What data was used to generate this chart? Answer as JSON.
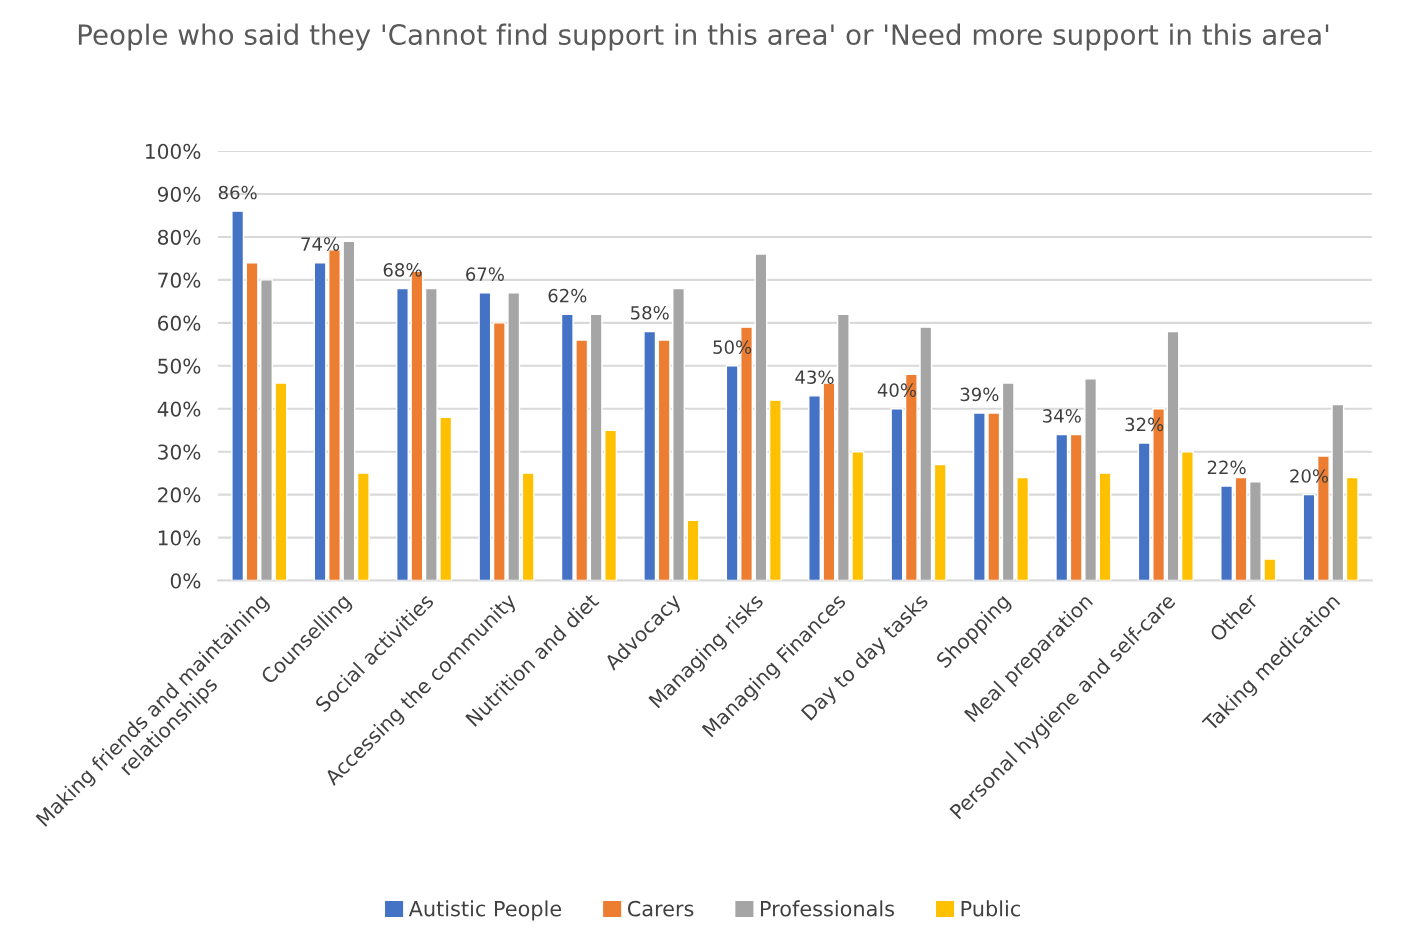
{
  "chart_data": {
    "type": "bar",
    "title": "People who said they 'Cannot find support in this area' or 'Need more support in this area'",
    "categories": [
      "Making friends and maintaining\nrelationships",
      "Counselling",
      "Social activities",
      "Accessing the community",
      "Nutrition and diet",
      "Advocacy",
      "Managing risks",
      "Managing Finances",
      "Day to day tasks",
      "Shopping",
      "Meal preparation",
      "Personal hygiene and self-care",
      "Other",
      "Taking medication"
    ],
    "series": [
      {
        "name": "Autistic People",
        "color": "#4472c4",
        "values": [
          86,
          74,
          68,
          67,
          62,
          58,
          50,
          43,
          40,
          39,
          34,
          32,
          22,
          20
        ],
        "value_labels": [
          "86%",
          "74%",
          "68%",
          "67%",
          "62%",
          "58%",
          "50%",
          "43%",
          "40%",
          "39%",
          "34%",
          "32%",
          "22%",
          "20%"
        ]
      },
      {
        "name": "Carers",
        "color": "#ed7d31",
        "values": [
          74,
          77,
          72,
          60,
          56,
          56,
          59,
          46,
          48,
          39,
          34,
          40,
          24,
          29
        ]
      },
      {
        "name": "Professionals",
        "color": "#a5a5a5",
        "values": [
          70,
          79,
          68,
          67,
          62,
          68,
          76,
          62,
          59,
          46,
          47,
          58,
          23,
          41
        ]
      },
      {
        "name": "Public",
        "color": "#ffc000",
        "values": [
          46,
          25,
          38,
          25,
          35,
          14,
          42,
          30,
          27,
          24,
          25,
          30,
          5,
          24
        ]
      }
    ],
    "ylim": [
      0,
      100
    ],
    "yticks": [
      {
        "value": 0,
        "label": "0%"
      },
      {
        "value": 10,
        "label": "10%"
      },
      {
        "value": 20,
        "label": "20%"
      },
      {
        "value": 30,
        "label": "30%"
      },
      {
        "value": 40,
        "label": "40%"
      },
      {
        "value": 50,
        "label": "50%"
      },
      {
        "value": 60,
        "label": "60%"
      },
      {
        "value": 70,
        "label": "70%"
      },
      {
        "value": 80,
        "label": "80%"
      },
      {
        "value": 90,
        "label": "90%"
      },
      {
        "value": 100,
        "label": "100%"
      }
    ],
    "grid": "y",
    "legend": "bottom"
  }
}
